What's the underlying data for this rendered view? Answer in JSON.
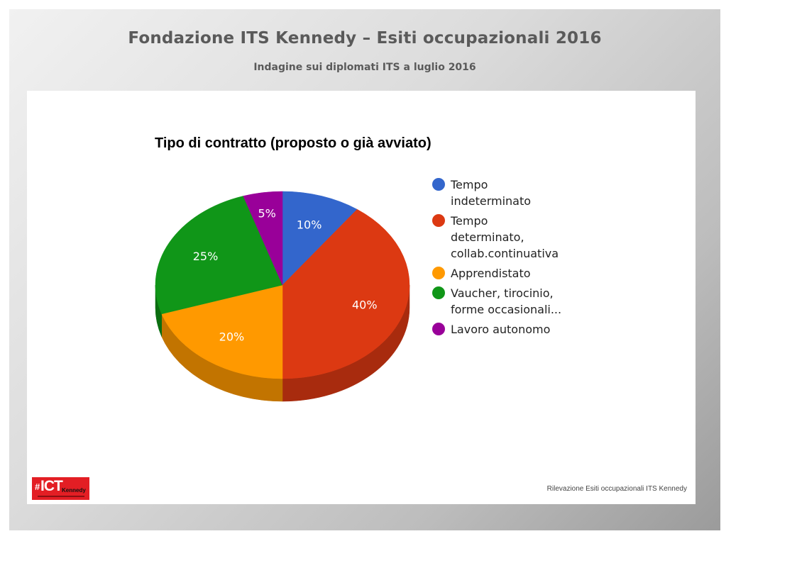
{
  "header": {
    "title": "Fondazione ITS Kennedy – Esiti occupazionali 2016",
    "subtitle": "Indagine sui diplomati ITS a luglio 2016"
  },
  "footer": {
    "source": "Rilevazione Esiti occupazionali ITS Kennedy",
    "logo_text": "#ICT Kennedy"
  },
  "chart_data": {
    "type": "pie",
    "title": "Tipo di contratto (proposto o già avviato)",
    "style": "3d",
    "legend_position": "right",
    "slices": [
      {
        "label": [
          "Tempo",
          "indeterminato"
        ],
        "value": 10,
        "display": "10%",
        "color": "#3366cc",
        "side": "#2a55a8"
      },
      {
        "label": [
          "Tempo",
          "determinato,",
          "collab.continuativa"
        ],
        "value": 40,
        "display": "40%",
        "color": "#dc3912",
        "side": "#a82b0e"
      },
      {
        "label": [
          "Apprendistato"
        ],
        "value": 20,
        "display": "20%",
        "color": "#ff9900",
        "side": "#c27400"
      },
      {
        "label": [
          "Vaucher, tirocinio,",
          "forme occasionali..."
        ],
        "value": 25,
        "display": "25%",
        "color": "#109618",
        "side": "#0b6e11"
      },
      {
        "label": [
          "Lavoro autonomo"
        ],
        "value": 5,
        "display": "5%",
        "color": "#990099",
        "side": "#700070"
      }
    ]
  }
}
